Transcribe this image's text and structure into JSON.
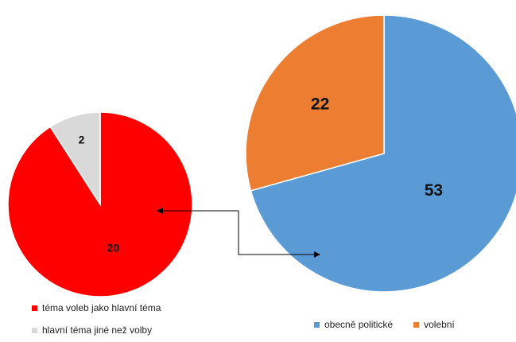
{
  "chart_data": [
    {
      "type": "pie",
      "categories": [
        "obecně politické",
        "volební"
      ],
      "values": [
        53,
        22
      ],
      "colors": [
        "#5b9bd5",
        "#ed7d31"
      ],
      "start_angle_deg": 0,
      "direction": "clockwise",
      "legend_position": "bottom"
    },
    {
      "type": "pie",
      "categories": [
        "téma voleb jako hlavní téma",
        "hlavní téma jiné než volby"
      ],
      "values": [
        20,
        2
      ],
      "colors": [
        "#ff0000",
        "#d9d9d9"
      ],
      "start_angle_deg": 0,
      "direction": "clockwise",
      "legend_position": "bottom"
    }
  ],
  "connector": {
    "description_style": "elbow-arrows",
    "color": "#000000"
  }
}
